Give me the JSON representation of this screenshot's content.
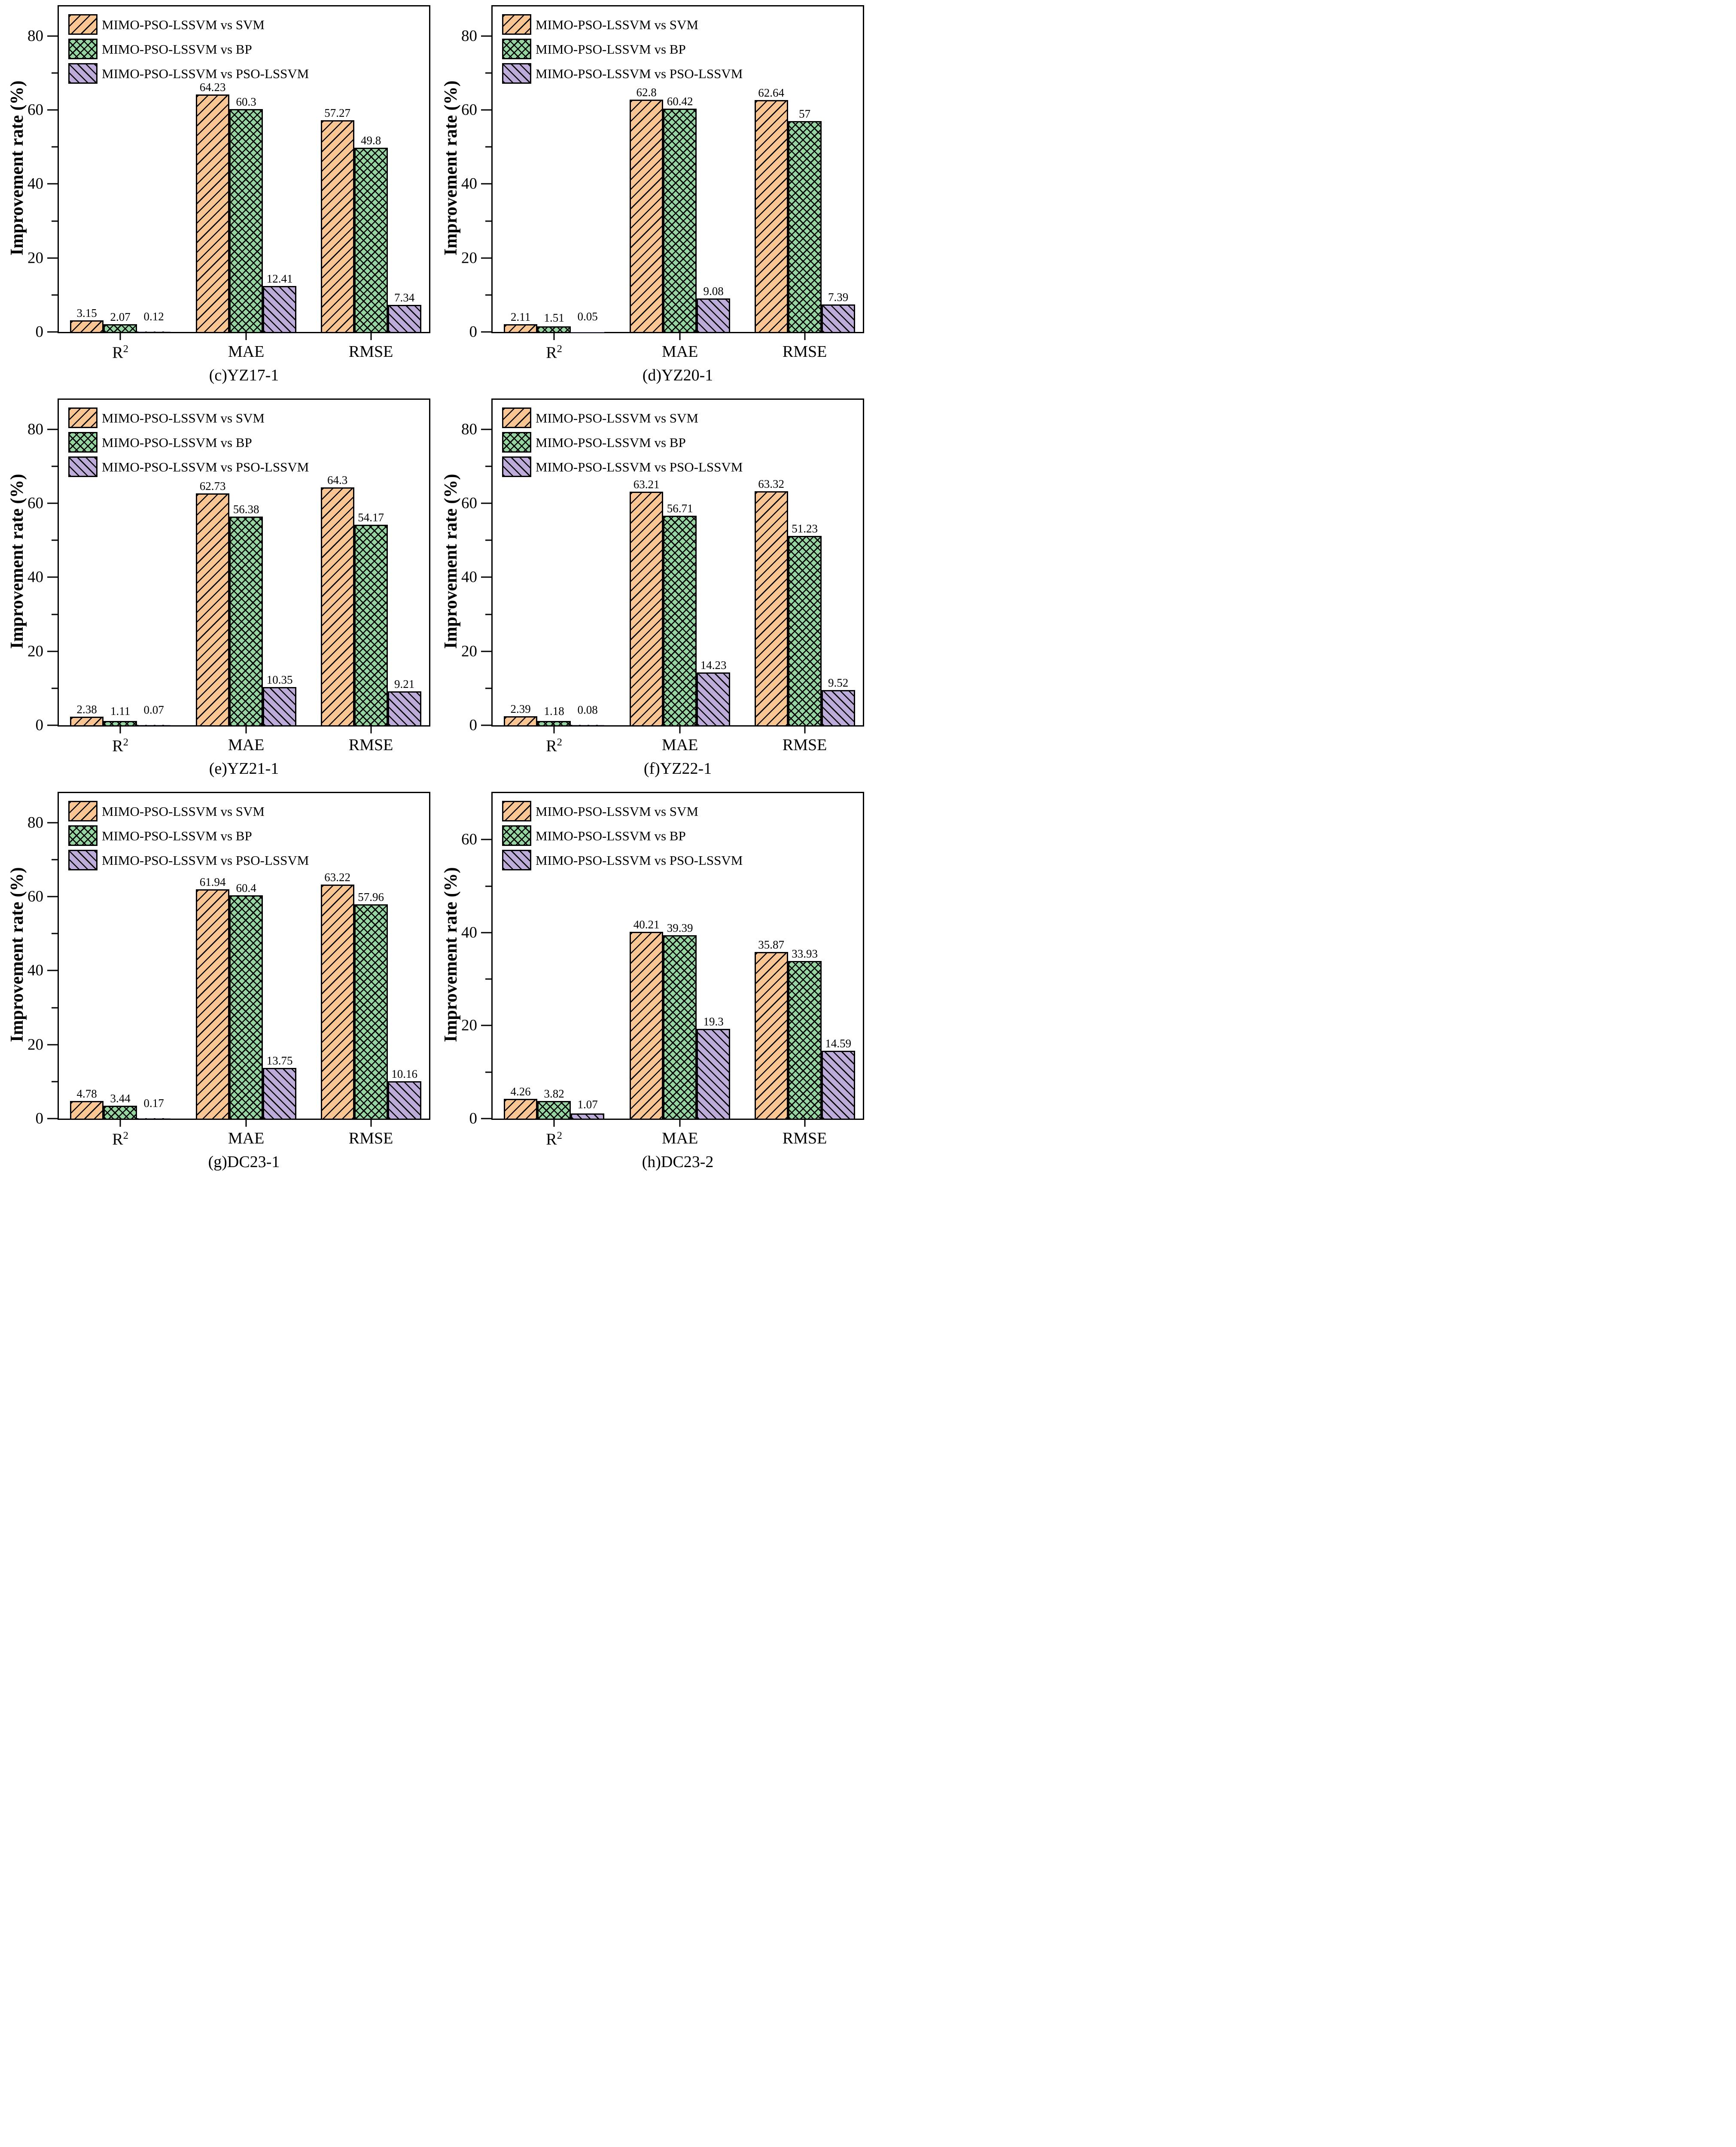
{
  "figure": {
    "ylabel": "Improvement rate (%)",
    "legend": [
      "MIMO-PSO-LSSVM vs SVM",
      "MIMO-PSO-LSSVM vs BP",
      "MIMO-PSO-LSSVM vs PSO-LSSVM"
    ],
    "series_colors": [
      "#F9C693",
      "#95D5A0",
      "#BDACD9"
    ],
    "outline_color": "#000000",
    "hatches": [
      "/",
      "x",
      "\\"
    ]
  },
  "chart_data": [
    {
      "type": "bar",
      "title": "(c)YZ17-1",
      "ylabel": "Improvement rate (%)",
      "categories": [
        "R²",
        "MAE",
        "RMSE"
      ],
      "ylim": [
        0,
        88
      ],
      "yticks": [
        0,
        20,
        40,
        60,
        80
      ],
      "minor_tick_step": 10,
      "grid": false,
      "legend_position": "upper-left",
      "series": [
        {
          "name": "MIMO-PSO-LSSVM vs SVM",
          "values": [
            3.15,
            64.23,
            57.27
          ],
          "labels": [
            "3.15",
            "64.23",
            "57.27"
          ]
        },
        {
          "name": "MIMO-PSO-LSSVM vs BP",
          "values": [
            2.07,
            60.3,
            49.8
          ],
          "labels": [
            "2.07",
            "60.3",
            "49.8"
          ]
        },
        {
          "name": "MIMO-PSO-LSSVM vs PSO-LSSVM",
          "values": [
            0.12,
            12.41,
            7.34
          ],
          "labels": [
            "0.12",
            "12.41",
            "7.34"
          ]
        }
      ]
    },
    {
      "type": "bar",
      "title": "(d)YZ20-1",
      "ylabel": "Improvement rate (%)",
      "categories": [
        "R²",
        "MAE",
        "RMSE"
      ],
      "ylim": [
        0,
        88
      ],
      "yticks": [
        0,
        20,
        40,
        60,
        80
      ],
      "minor_tick_step": 10,
      "grid": false,
      "legend_position": "upper-left",
      "series": [
        {
          "name": "MIMO-PSO-LSSVM vs SVM",
          "values": [
            2.11,
            62.8,
            62.64
          ],
          "labels": [
            "2.11",
            "62.8",
            "62.64"
          ]
        },
        {
          "name": "MIMO-PSO-LSSVM vs BP",
          "values": [
            1.51,
            60.42,
            57
          ],
          "labels": [
            "1.51",
            "60.42",
            "57"
          ]
        },
        {
          "name": "MIMO-PSO-LSSVM vs PSO-LSSVM",
          "values": [
            0.05,
            9.08,
            7.39
          ],
          "labels": [
            "0.05",
            "9.08",
            "7.39"
          ]
        }
      ]
    },
    {
      "type": "bar",
      "title": "(e)YZ21-1",
      "ylabel": "Improvement rate (%)",
      "categories": [
        "R²",
        "MAE",
        "RMSE"
      ],
      "ylim": [
        0,
        88
      ],
      "yticks": [
        0,
        20,
        40,
        60,
        80
      ],
      "minor_tick_step": 10,
      "grid": false,
      "legend_position": "upper-left",
      "series": [
        {
          "name": "MIMO-PSO-LSSVM vs SVM",
          "values": [
            2.38,
            62.73,
            64.3
          ],
          "labels": [
            "2.38",
            "62.73",
            "64.3"
          ]
        },
        {
          "name": "MIMO-PSO-LSSVM vs BP",
          "values": [
            1.11,
            56.38,
            54.17
          ],
          "labels": [
            "1.11",
            "56.38",
            "54.17"
          ]
        },
        {
          "name": "MIMO-PSO-LSSVM vs PSO-LSSVM",
          "values": [
            0.07,
            10.35,
            9.21
          ],
          "labels": [
            "0.07",
            "10.35",
            "9.21"
          ]
        }
      ]
    },
    {
      "type": "bar",
      "title": "(f)YZ22-1",
      "ylabel": "Improvement rate (%)",
      "categories": [
        "R²",
        "MAE",
        "RMSE"
      ],
      "ylim": [
        0,
        88
      ],
      "yticks": [
        0,
        20,
        40,
        60,
        80
      ],
      "minor_tick_step": 10,
      "grid": false,
      "legend_position": "upper-left",
      "series": [
        {
          "name": "MIMO-PSO-LSSVM vs SVM",
          "values": [
            2.39,
            63.21,
            63.32
          ],
          "labels": [
            "2.39",
            "63.21",
            "63.32"
          ]
        },
        {
          "name": "MIMO-PSO-LSSVM vs BP",
          "values": [
            1.18,
            56.71,
            51.23
          ],
          "labels": [
            "1.18",
            "56.71",
            "51.23"
          ]
        },
        {
          "name": "MIMO-PSO-LSSVM vs PSO-LSSVM",
          "values": [
            0.08,
            14.23,
            9.52
          ],
          "labels": [
            "0.08",
            "14.23",
            "9.52"
          ]
        }
      ]
    },
    {
      "type": "bar",
      "title": "(g)DC23-1",
      "ylabel": "Improvement rate (%)",
      "categories": [
        "R²",
        "MAE",
        "RMSE"
      ],
      "ylim": [
        0,
        88
      ],
      "yticks": [
        0,
        20,
        40,
        60,
        80
      ],
      "minor_tick_step": 10,
      "grid": false,
      "legend_position": "upper-left",
      "series": [
        {
          "name": "MIMO-PSO-LSSVM vs SVM",
          "values": [
            4.78,
            61.94,
            63.22
          ],
          "labels": [
            "4.78",
            "61.94",
            "63.22"
          ]
        },
        {
          "name": "MIMO-PSO-LSSVM vs BP",
          "values": [
            3.44,
            60.4,
            57.96
          ],
          "labels": [
            "3.44",
            "60.4",
            "57.96"
          ]
        },
        {
          "name": "MIMO-PSO-LSSVM vs PSO-LSSVM",
          "values": [
            0.17,
            13.75,
            10.16
          ],
          "labels": [
            "0.17",
            "13.75",
            "10.16"
          ]
        }
      ]
    },
    {
      "type": "bar",
      "title": "(h)DC23-2",
      "ylabel": "Improvement rate (%)",
      "categories": [
        "R²",
        "MAE",
        "RMSE"
      ],
      "ylim": [
        0,
        70
      ],
      "yticks": [
        0,
        20,
        40,
        60
      ],
      "minor_tick_step": 10,
      "grid": false,
      "legend_position": "upper-left",
      "series": [
        {
          "name": "MIMO-PSO-LSSVM vs SVM",
          "values": [
            4.26,
            40.21,
            35.87
          ],
          "labels": [
            "4.26",
            "40.21",
            "35.87"
          ]
        },
        {
          "name": "MIMO-PSO-LSSVM vs BP",
          "values": [
            3.82,
            39.39,
            33.93
          ],
          "labels": [
            "3.82",
            "39.39",
            "33.93"
          ]
        },
        {
          "name": "MIMO-PSO-LSSVM vs PSO-LSSVM",
          "values": [
            1.07,
            19.3,
            14.59
          ],
          "labels": [
            "1.07",
            "19.3",
            "14.59"
          ]
        }
      ]
    }
  ]
}
